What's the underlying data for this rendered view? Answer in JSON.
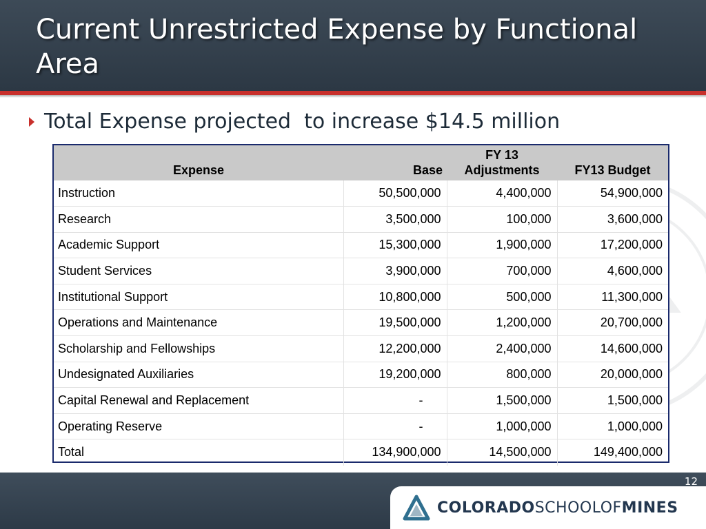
{
  "slide": {
    "title": "Current Unrestricted Expense by Functional Area",
    "bullet": "Total Expense projected  to increase $14.5 million",
    "page_number": "12"
  },
  "table": {
    "header": {
      "expense": "Expense",
      "base": "Base",
      "adjustments_line1": "FY 13",
      "adjustments_line2": "Adjustments",
      "budget": "FY13 Budget"
    },
    "rows": [
      {
        "expense": "Instruction",
        "base": "50,500,000",
        "adjustments": "4,400,000",
        "budget": "54,900,000"
      },
      {
        "expense": "Research",
        "base": "3,500,000",
        "adjustments": "100,000",
        "budget": "3,600,000"
      },
      {
        "expense": "Academic Support",
        "base": "15,300,000",
        "adjustments": "1,900,000",
        "budget": "17,200,000"
      },
      {
        "expense": "Student Services",
        "base": "3,900,000",
        "adjustments": "700,000",
        "budget": "4,600,000"
      },
      {
        "expense": "Institutional Support",
        "base": "10,800,000",
        "adjustments": "500,000",
        "budget": "11,300,000"
      },
      {
        "expense": "Operations and Maintenance",
        "base": "19,500,000",
        "adjustments": "1,200,000",
        "budget": "20,700,000"
      },
      {
        "expense": "Scholarship and Fellowships",
        "base": "12,200,000",
        "adjustments": "2,400,000",
        "budget": "14,600,000"
      },
      {
        "expense": "Undesignated Auxiliaries",
        "base": "19,200,000",
        "adjustments": "800,000",
        "budget": "20,000,000"
      },
      {
        "expense": "Capital Renewal and Replacement",
        "base": "-",
        "adjustments": "1,500,000",
        "budget": "1,500,000"
      },
      {
        "expense": "Operating Reserve",
        "base": "-",
        "adjustments": "1,000,000",
        "budget": "1,000,000"
      }
    ],
    "total": {
      "expense": "Total",
      "base": "134,900,000",
      "adjustments": "14,500,000",
      "budget": "149,400,000"
    }
  },
  "logo": {
    "part1": "COLORADO",
    "part2": "SCHOOLOF",
    "part3": "MINES"
  },
  "colors": {
    "title_bar": "#2f3b47",
    "accent_red": "#c8302c",
    "table_border": "#1a2a6c",
    "header_fill": "#c9c9c9",
    "logo_text": "#23374f"
  }
}
